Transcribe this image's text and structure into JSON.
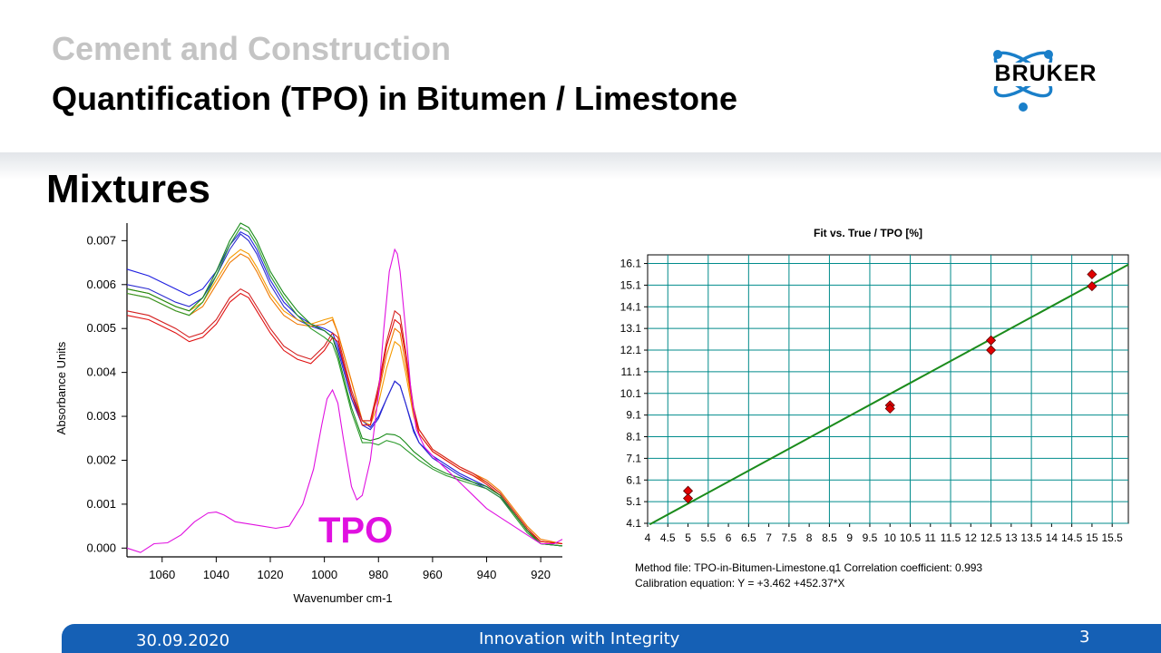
{
  "header": {
    "supertitle": "Cement and Construction",
    "title": "Quantification (TPO) in Bitumen / Limestone",
    "logo_text": "BRUKER"
  },
  "section_title": "Mixtures",
  "colors": {
    "header_gray": "#c4c4c4",
    "footer_blue": "#1560b5",
    "logo_blue": "#1a7fc9",
    "grid_teal": "#008b8b",
    "fit_line_green": "#1b8b1b",
    "marker_red": "#e00000",
    "tpo_magenta": "#e000e0"
  },
  "chart_data": [
    {
      "type": "line",
      "title": "",
      "xlabel": "Wavenumber cm-1",
      "ylabel": "Absorbance Units",
      "xlim": [
        1073,
        912
      ],
      "x_reversed": true,
      "ylim": [
        -0.0002,
        0.0074
      ],
      "x_ticks": [
        "1060",
        "1040",
        "1020",
        "1000",
        "980",
        "960",
        "940",
        "920"
      ],
      "y_ticks": [
        "0.000",
        "0.001",
        "0.002",
        "0.003",
        "0.004",
        "0.005",
        "0.006",
        "0.007"
      ],
      "annotation": "TPO",
      "series": [
        {
          "color": "#1d1de0",
          "x": [
            1073,
            1065,
            1055,
            1050,
            1045,
            1040,
            1035,
            1031,
            1028,
            1025,
            1020,
            1015,
            1010,
            1005,
            1000,
            997,
            995,
            990,
            986,
            983,
            980,
            977,
            974,
            972,
            970,
            967,
            965,
            960,
            955,
            950,
            945,
            940,
            935,
            930,
            925,
            920,
            912
          ],
          "y": [
            0.00635,
            0.0062,
            0.0059,
            0.00575,
            0.0059,
            0.0063,
            0.0069,
            0.0072,
            0.0071,
            0.0068,
            0.0061,
            0.0056,
            0.0053,
            0.0051,
            0.005,
            0.0049,
            0.0046,
            0.0035,
            0.0029,
            0.00275,
            0.003,
            0.0034,
            0.0038,
            0.0037,
            0.0033,
            0.0027,
            0.0024,
            0.0021,
            0.0019,
            0.0017,
            0.00155,
            0.0014,
            0.0012,
            0.0008,
            0.0004,
            0.0001,
            5e-05
          ]
        },
        {
          "color": "#2a2ad0",
          "x": [
            1073,
            1065,
            1055,
            1050,
            1045,
            1040,
            1035,
            1031,
            1028,
            1025,
            1020,
            1015,
            1010,
            1005,
            1000,
            997,
            995,
            990,
            986,
            983,
            980,
            977,
            974,
            972,
            970,
            967,
            965,
            960,
            955,
            950,
            945,
            940,
            935,
            930,
            925,
            920,
            912
          ],
          "y": [
            0.006,
            0.0059,
            0.0056,
            0.0055,
            0.0057,
            0.0062,
            0.0068,
            0.00715,
            0.007,
            0.0067,
            0.006,
            0.0055,
            0.0052,
            0.00505,
            0.00495,
            0.0048,
            0.0045,
            0.0034,
            0.0028,
            0.0027,
            0.00295,
            0.0034,
            0.0038,
            0.0037,
            0.0033,
            0.00265,
            0.0024,
            0.00205,
            0.00185,
            0.00165,
            0.0015,
            0.00135,
            0.00115,
            0.0008,
            0.0004,
            0.0001,
            5e-05
          ]
        },
        {
          "color": "#f59a00",
          "x": [
            1073,
            1065,
            1055,
            1050,
            1045,
            1040,
            1035,
            1031,
            1028,
            1025,
            1020,
            1015,
            1010,
            1005,
            1000,
            997,
            995,
            990,
            986,
            983,
            980,
            977,
            974,
            972,
            970,
            967,
            965,
            960,
            955,
            950,
            945,
            940,
            935,
            930,
            925,
            920,
            912
          ],
          "y": [
            0.0059,
            0.0058,
            0.0055,
            0.0054,
            0.0056,
            0.0061,
            0.0066,
            0.0068,
            0.0067,
            0.0064,
            0.0058,
            0.0054,
            0.0052,
            0.0051,
            0.0052,
            0.00525,
            0.0049,
            0.0038,
            0.0029,
            0.0028,
            0.0033,
            0.0041,
            0.0047,
            0.0046,
            0.004,
            0.003,
            0.0026,
            0.0022,
            0.002,
            0.0018,
            0.00165,
            0.0015,
            0.00125,
            0.00085,
            0.00045,
            0.00015,
            0.0001
          ]
        },
        {
          "color": "#f07800",
          "x": [
            1073,
            1065,
            1055,
            1050,
            1045,
            1040,
            1035,
            1031,
            1028,
            1025,
            1020,
            1015,
            1010,
            1005,
            1000,
            997,
            995,
            990,
            986,
            983,
            980,
            977,
            974,
            972,
            970,
            967,
            965,
            960,
            955,
            950,
            945,
            940,
            935,
            930,
            925,
            920,
            912
          ],
          "y": [
            0.0058,
            0.0057,
            0.0054,
            0.0053,
            0.0055,
            0.006,
            0.0065,
            0.0067,
            0.0066,
            0.0063,
            0.0057,
            0.0053,
            0.0051,
            0.00505,
            0.0051,
            0.0052,
            0.0049,
            0.0038,
            0.0029,
            0.0029,
            0.0035,
            0.0044,
            0.005,
            0.0049,
            0.0042,
            0.0031,
            0.0027,
            0.00225,
            0.00205,
            0.00185,
            0.0017,
            0.00155,
            0.0013,
            0.0009,
            0.0005,
            0.0002,
            0.0001
          ]
        },
        {
          "color": "#d42020",
          "x": [
            1073,
            1065,
            1055,
            1050,
            1045,
            1040,
            1035,
            1031,
            1028,
            1025,
            1020,
            1015,
            1010,
            1005,
            1000,
            997,
            995,
            990,
            986,
            983,
            980,
            977,
            974,
            972,
            970,
            967,
            965,
            960,
            955,
            950,
            945,
            940,
            935,
            930,
            925,
            920,
            912
          ],
          "y": [
            0.0054,
            0.0053,
            0.005,
            0.0048,
            0.0049,
            0.0052,
            0.0057,
            0.0059,
            0.0058,
            0.0055,
            0.005,
            0.0046,
            0.0044,
            0.0043,
            0.0046,
            0.0049,
            0.0048,
            0.0036,
            0.0029,
            0.0029,
            0.0037,
            0.0047,
            0.0054,
            0.0053,
            0.0045,
            0.0032,
            0.0027,
            0.00225,
            0.00205,
            0.00185,
            0.0017,
            0.0015,
            0.00125,
            0.00085,
            0.00045,
            0.00015,
            0.0001
          ]
        },
        {
          "color": "#e01010",
          "x": [
            1073,
            1065,
            1055,
            1050,
            1045,
            1040,
            1035,
            1031,
            1028,
            1025,
            1020,
            1015,
            1010,
            1005,
            1000,
            997,
            995,
            990,
            986,
            983,
            980,
            977,
            974,
            972,
            970,
            967,
            965,
            960,
            955,
            950,
            945,
            940,
            935,
            930,
            925,
            920,
            912
          ],
          "y": [
            0.0053,
            0.0052,
            0.0049,
            0.0047,
            0.0048,
            0.0051,
            0.0056,
            0.0058,
            0.0057,
            0.0054,
            0.0049,
            0.0045,
            0.0043,
            0.0042,
            0.0045,
            0.0048,
            0.0047,
            0.0035,
            0.0028,
            0.0028,
            0.0036,
            0.0046,
            0.0052,
            0.0051,
            0.0044,
            0.0031,
            0.0026,
            0.0022,
            0.002,
            0.0018,
            0.00165,
            0.00145,
            0.0012,
            0.0008,
            0.0004,
            0.00015,
            0.0001
          ]
        },
        {
          "color": "#178a17",
          "x": [
            1073,
            1065,
            1055,
            1050,
            1045,
            1040,
            1035,
            1031,
            1028,
            1025,
            1020,
            1015,
            1010,
            1005,
            1000,
            997,
            995,
            990,
            986,
            983,
            980,
            977,
            974,
            972,
            970,
            967,
            965,
            960,
            955,
            950,
            945,
            940,
            935,
            930,
            925,
            920,
            912
          ],
          "y": [
            0.0059,
            0.0058,
            0.0055,
            0.0054,
            0.0057,
            0.0063,
            0.007,
            0.0074,
            0.0073,
            0.007,
            0.0063,
            0.0058,
            0.0054,
            0.0051,
            0.00495,
            0.0048,
            0.0044,
            0.0032,
            0.0025,
            0.00245,
            0.0025,
            0.0026,
            0.00258,
            0.00252,
            0.0024,
            0.0022,
            0.0021,
            0.00185,
            0.0017,
            0.0016,
            0.0015,
            0.0014,
            0.0012,
            0.0008,
            0.0004,
            0.0001,
            5e-05
          ]
        },
        {
          "color": "#2b9a2b",
          "x": [
            1073,
            1065,
            1055,
            1050,
            1045,
            1040,
            1035,
            1031,
            1028,
            1025,
            1020,
            1015,
            1010,
            1005,
            1000,
            997,
            995,
            990,
            986,
            983,
            980,
            977,
            974,
            972,
            970,
            967,
            965,
            960,
            955,
            950,
            945,
            940,
            935,
            930,
            925,
            920,
            912
          ],
          "y": [
            0.0058,
            0.0057,
            0.0054,
            0.0053,
            0.0056,
            0.0062,
            0.0069,
            0.0073,
            0.0072,
            0.0069,
            0.0062,
            0.0057,
            0.0053,
            0.005,
            0.0048,
            0.00465,
            0.0043,
            0.0031,
            0.0024,
            0.0024,
            0.00235,
            0.00245,
            0.0024,
            0.00235,
            0.00225,
            0.0021,
            0.002,
            0.0018,
            0.00165,
            0.00155,
            0.00145,
            0.00135,
            0.00115,
            0.00075,
            0.00035,
            0.0001,
            5e-05
          ]
        },
        {
          "color": "#e010e0",
          "x": [
            1073,
            1068,
            1063,
            1058,
            1053,
            1048,
            1043,
            1040,
            1037,
            1033,
            1028,
            1023,
            1018,
            1013,
            1008,
            1004,
            1001,
            999,
            997,
            995,
            993,
            990,
            988,
            986,
            983,
            980,
            978,
            976,
            974,
            973,
            972,
            970,
            968,
            966,
            963,
            960,
            955,
            950,
            945,
            940,
            935,
            930,
            925,
            920,
            915,
            912
          ],
          "y": [
            0.0,
            -0.0001,
            0.0001,
            0.00012,
            0.0003,
            0.0006,
            0.0008,
            0.00082,
            0.00075,
            0.0006,
            0.00055,
            0.0005,
            0.00045,
            0.0005,
            0.001,
            0.0018,
            0.0028,
            0.0034,
            0.0036,
            0.0033,
            0.0025,
            0.0014,
            0.0011,
            0.0012,
            0.002,
            0.0035,
            0.005,
            0.0063,
            0.0068,
            0.0067,
            0.0063,
            0.005,
            0.0036,
            0.0027,
            0.0023,
            0.0021,
            0.0018,
            0.0015,
            0.0012,
            0.0009,
            0.0007,
            0.0005,
            0.0003,
            0.0001,
            0.0001,
            0.0002
          ]
        }
      ]
    },
    {
      "type": "scatter",
      "title": "Fit vs. True  /  TPO  [%]",
      "xlim": [
        4,
        15.9
      ],
      "ylim": [
        4.1,
        16.5
      ],
      "x_ticks": [
        "4",
        "4.5",
        "5",
        "5.5",
        "6",
        "6.5",
        "7",
        "7.5",
        "8",
        "8.5",
        "9",
        "9.5",
        "10",
        "10.5",
        "11",
        "11.5",
        "12",
        "12.5",
        "13",
        "13.5",
        "14",
        "14.5",
        "15",
        "15.5"
      ],
      "y_ticks": [
        "4.1",
        "5.1",
        "6.1",
        "7.1",
        "8.1",
        "9.1",
        "10.1",
        "11.1",
        "12.1",
        "13.1",
        "14.1",
        "15.1",
        "16.1"
      ],
      "points": [
        {
          "x": 5,
          "y": 5.6
        },
        {
          "x": 5,
          "y": 5.25
        },
        {
          "x": 10,
          "y": 9.55
        },
        {
          "x": 10,
          "y": 9.4
        },
        {
          "x": 12.5,
          "y": 12.55
        },
        {
          "x": 12.5,
          "y": 12.1
        },
        {
          "x": 15,
          "y": 15.6
        },
        {
          "x": 15,
          "y": 15.05
        }
      ],
      "fit_line": {
        "x": [
          4.05,
          15.9
        ],
        "y": [
          4.05,
          16.05
        ]
      }
    }
  ],
  "calibration_info": {
    "method_file": "Method file:  TPO-in-Bitumen-Limestone.q1    Correlation coefficient:  0.993",
    "equation": "Calibration equation:     Y = +3.462 +452.37*X"
  },
  "footer": {
    "date": "30.09.2020",
    "tagline": "Innovation with Integrity",
    "page": "3"
  }
}
